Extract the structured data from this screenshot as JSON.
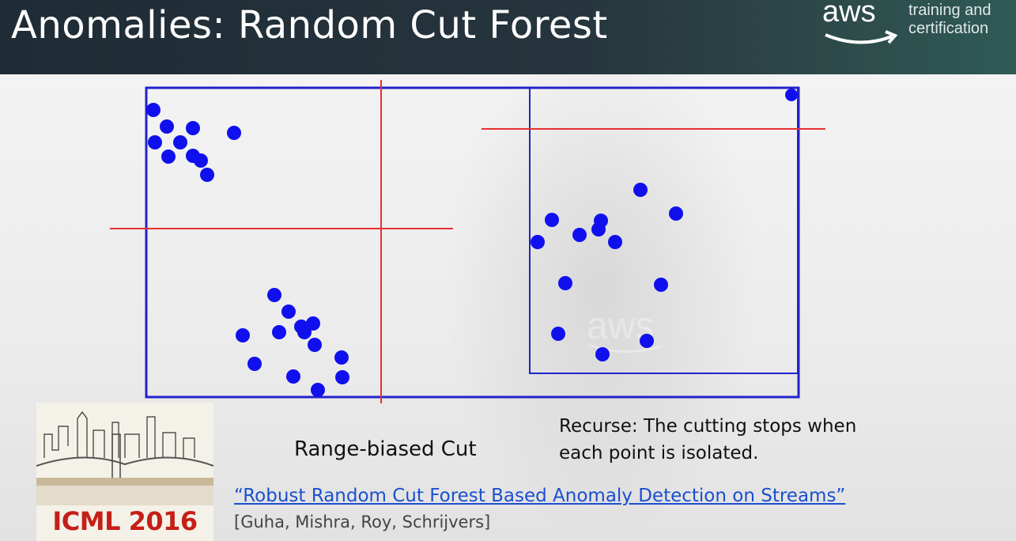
{
  "slide": {
    "title": "Anomalies: Random Cut Forest",
    "brand": {
      "logo_word": "aws",
      "tagline_line1": "training and",
      "tagline_line2": "certification"
    },
    "diagram": {
      "point_color": "#1010ee",
      "box_color": "#2222cc",
      "cut_color": "#e83030"
    },
    "captions": {
      "range_cut": "Range-biased Cut",
      "recurse_line1": "Recurse: The cutting stops when",
      "recurse_line2": "each point is isolated."
    },
    "reference": {
      "title": "“Robust Random Cut Forest Based Anomaly Detection on Streams”",
      "authors": "[Guha, Mishra, Roy, Schrijvers]"
    },
    "conference_logo": {
      "text": "ICML 2016"
    }
  }
}
